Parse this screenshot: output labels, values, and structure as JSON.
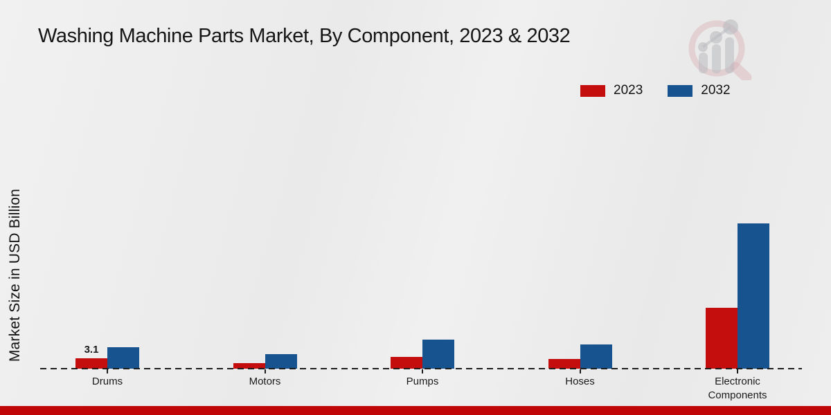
{
  "title": "Washing Machine Parts Market, By Component, 2023 & 2032",
  "ylabel": "Market Size in USD Billion",
  "legend": [
    {
      "label": "2023",
      "color": "#c40d0d"
    },
    {
      "label": "2032",
      "color": "#17538f"
    }
  ],
  "footer_color": "#c00606",
  "logo": "market-research-future-watermark",
  "chart_data": {
    "type": "bar",
    "title": "Washing Machine Parts Market, By Component, 2023 & 2032",
    "xlabel": "",
    "ylabel": "Market Size in USD Billion",
    "categories": [
      "Drums",
      "Motors",
      "Pumps",
      "Hoses",
      "Electronic Components"
    ],
    "series": [
      {
        "name": "2023",
        "color": "#c40d0d",
        "values": [
          3.1,
          1.7,
          3.7,
          2.9,
          18.7
        ]
      },
      {
        "name": "2032",
        "color": "#17538f",
        "values": [
          6.7,
          4.5,
          9.0,
          7.4,
          44.8
        ]
      }
    ],
    "data_labels": [
      {
        "series": "2023",
        "category": "Drums",
        "text": "3.1"
      }
    ],
    "ylim": [
      0,
      50
    ],
    "grid": false,
    "y_axis_ticks_visible": false,
    "legend_position": "top-right",
    "baseline_style": "dashed"
  }
}
